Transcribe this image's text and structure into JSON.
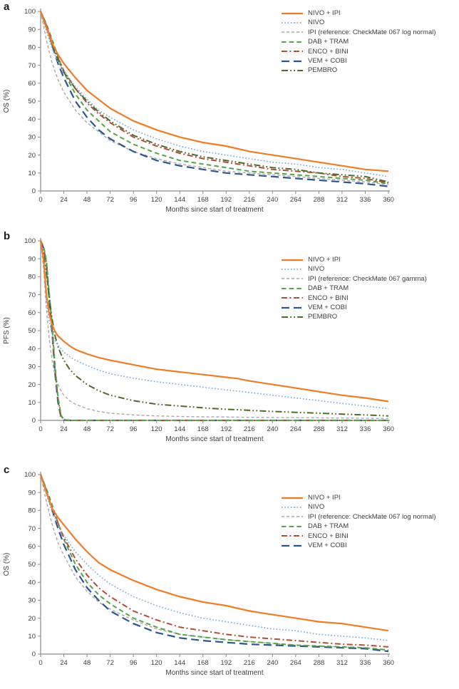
{
  "figure": {
    "panels": [
      {
        "label": "a"
      },
      {
        "label": "b"
      },
      {
        "label": "c"
      }
    ]
  },
  "chart_data": [
    {
      "type": "line",
      "panel": "a",
      "title": "",
      "xlabel": "Months since start of treatment",
      "ylabel": "OS (%)",
      "xlim": [
        0,
        360
      ],
      "ylim": [
        0,
        100
      ],
      "grid": false,
      "legend_position": "top-right-inside",
      "xticks": [
        0,
        24,
        48,
        72,
        96,
        120,
        144,
        168,
        192,
        216,
        240,
        264,
        288,
        312,
        336,
        360
      ],
      "yticks": [
        0,
        10,
        20,
        30,
        40,
        50,
        60,
        70,
        80,
        90,
        100
      ],
      "x": [
        0,
        6,
        12,
        18,
        24,
        36,
        48,
        60,
        72,
        96,
        120,
        144,
        168,
        192,
        216,
        240,
        264,
        288,
        312,
        336,
        360
      ],
      "series": [
        {
          "name": "NIVO + IPI",
          "color": "#f07c26",
          "style": "solid",
          "values": [
            100,
            91,
            82,
            76,
            71,
            63,
            56,
            51,
            46,
            39,
            34,
            30,
            27,
            25,
            22,
            20,
            18,
            16,
            14,
            12,
            11
          ]
        },
        {
          "name": "NIVO",
          "color": "#79abdc",
          "style": "dot",
          "values": [
            100,
            89,
            79,
            72,
            67,
            58,
            51,
            45,
            41,
            34,
            29,
            25,
            22,
            20,
            18,
            16,
            15,
            13,
            12,
            10,
            8
          ]
        },
        {
          "name": "IPI (reference: CheckMate 067 log normal)",
          "color": "#a7a7a7",
          "style": "dash-small",
          "values": [
            100,
            84,
            71,
            62,
            55,
            45,
            38,
            33,
            28,
            22,
            18,
            15,
            13,
            11,
            10,
            9,
            8,
            7,
            6,
            5,
            3.5
          ]
        },
        {
          "name": "DAB + TRAM",
          "color": "#55a546",
          "style": "dash",
          "values": [
            100,
            93,
            84,
            75,
            66,
            54,
            45,
            39,
            33,
            26,
            21,
            17,
            15,
            13,
            11,
            10,
            9,
            8,
            7,
            6,
            4
          ]
        },
        {
          "name": "ENCO + BINI",
          "color": "#ae4f38",
          "style": "dash-dot",
          "values": [
            100,
            92,
            83,
            74,
            67,
            57,
            49,
            43,
            38,
            30,
            25,
            21,
            18,
            16,
            14,
            12,
            11,
            10,
            8,
            7,
            4.5
          ]
        },
        {
          "name": "VEM + COBI",
          "color": "#2d5590",
          "style": "long-dash",
          "values": [
            100,
            92,
            81,
            71,
            63,
            50,
            41,
            34,
            29,
            22,
            17,
            14,
            12,
            10,
            9,
            8,
            7,
            6,
            5,
            4,
            2.5
          ]
        },
        {
          "name": "PEMBRO",
          "color": "#4e6a2c",
          "style": "dash-dot-dot",
          "values": [
            100,
            91,
            81,
            73,
            66,
            57,
            50,
            44,
            39,
            31,
            26,
            22,
            19,
            17,
            15,
            13,
            12,
            10,
            9,
            8,
            5
          ]
        }
      ],
      "draw_order": [
        2,
        5,
        3,
        4,
        6,
        1,
        0
      ]
    },
    {
      "type": "line",
      "panel": "b",
      "title": "",
      "xlabel": "Months since start of treatment",
      "ylabel": "PFS (%)",
      "xlim": [
        0,
        360
      ],
      "ylim": [
        0,
        100
      ],
      "grid": false,
      "legend_position": "top-right-inside",
      "xticks": [
        0,
        24,
        48,
        72,
        96,
        120,
        144,
        168,
        192,
        216,
        240,
        264,
        288,
        312,
        336,
        360
      ],
      "yticks": [
        0,
        10,
        20,
        30,
        40,
        50,
        60,
        70,
        80,
        90,
        100
      ],
      "x": [
        0,
        3,
        6,
        9,
        12,
        15,
        18,
        21,
        24,
        30,
        36,
        48,
        60,
        72,
        96,
        120,
        144,
        168,
        192,
        204,
        216,
        240,
        264,
        288,
        312,
        336,
        360
      ],
      "series": [
        {
          "name": "NIVO + IPI",
          "color": "#f07c26",
          "style": "solid",
          "values": [
            100,
            90,
            70,
            59,
            53,
            49.5,
            47,
            45.5,
            44,
            41.5,
            39.5,
            37,
            35,
            33.5,
            31,
            28.5,
            27,
            25.5,
            24,
            23.3,
            22,
            20,
            18,
            16,
            14,
            12.5,
            10.5
          ]
        },
        {
          "name": "NIVO",
          "color": "#79abdc",
          "style": "dot",
          "values": [
            100,
            88,
            66,
            55,
            48,
            44.5,
            42,
            40,
            38,
            35.5,
            33.5,
            30.5,
            28,
            26,
            23.5,
            21.5,
            20,
            18.5,
            17,
            16.3,
            15.5,
            14,
            12.5,
            11,
            9.5,
            8,
            6.5
          ]
        },
        {
          "name": "IPI (reference: CheckMate 067 gamma)",
          "color": "#a7a7a7",
          "style": "dash-small",
          "values": [
            100,
            85,
            62,
            45,
            33,
            25,
            20,
            16.5,
            14,
            11,
            9,
            6.5,
            5,
            4,
            3,
            2.5,
            2.2,
            2,
            1.9,
            1.8,
            1.7,
            1.6,
            1.5,
            1.4,
            1.3,
            1.2,
            1
          ]
        },
        {
          "name": "DAB + TRAM",
          "color": "#55a546",
          "style": "dash",
          "values": [
            100,
            97,
            89,
            70,
            52,
            30,
            13,
            3,
            0.4,
            0,
            0,
            0,
            0,
            0,
            0,
            0,
            0,
            0,
            0,
            0,
            0,
            0,
            0,
            0,
            0,
            0,
            0
          ]
        },
        {
          "name": "ENCO + BINI",
          "color": "#ae4f38",
          "style": "dash-dot",
          "values": [
            100,
            96,
            88,
            68,
            50,
            28,
            12,
            2.5,
            0.3,
            0,
            0,
            0,
            0,
            0,
            0,
            0,
            0,
            0,
            0,
            0,
            0,
            0,
            0,
            0,
            0,
            0,
            0
          ]
        },
        {
          "name": "VEM + COBI",
          "color": "#2d5590",
          "style": "long-dash",
          "values": [
            100,
            96,
            87,
            66,
            48,
            26,
            10,
            2,
            0.2,
            0,
            0,
            0,
            0,
            0,
            0,
            0,
            0,
            0,
            0,
            0,
            0,
            0,
            0,
            0,
            0,
            0,
            0
          ]
        },
        {
          "name": "PEMBRO",
          "color": "#4e6a2c",
          "style": "dash-dot-dot",
          "values": [
            100,
            93,
            82,
            68,
            56,
            47,
            41,
            37,
            33.5,
            28.5,
            25,
            20,
            16.5,
            14,
            11,
            9,
            8,
            7,
            6.2,
            5.9,
            5.6,
            5,
            4.5,
            4,
            3.5,
            3,
            2.5
          ]
        }
      ],
      "draw_order": [
        2,
        5,
        4,
        3,
        6,
        1,
        0
      ]
    },
    {
      "type": "line",
      "panel": "c",
      "title": "",
      "xlabel": "Months since start of treatment",
      "ylabel": "OS (%)",
      "xlim": [
        0,
        360
      ],
      "ylim": [
        0,
        100
      ],
      "grid": false,
      "legend_position": "top-right-inside",
      "xticks": [
        0,
        24,
        48,
        72,
        96,
        120,
        144,
        168,
        192,
        216,
        240,
        264,
        288,
        312,
        336,
        360
      ],
      "yticks": [
        0,
        10,
        20,
        30,
        40,
        50,
        60,
        70,
        80,
        90,
        100
      ],
      "x": [
        0,
        6,
        12,
        18,
        24,
        36,
        48,
        60,
        72,
        96,
        120,
        144,
        168,
        192,
        216,
        240,
        264,
        288,
        312,
        336,
        360
      ],
      "series": [
        {
          "name": "NIVO + IPI",
          "color": "#f07c26",
          "style": "solid",
          "values": [
            100,
            90,
            81,
            76,
            72,
            64,
            57,
            51,
            47,
            41,
            36,
            32,
            29,
            27,
            24,
            22,
            20,
            18,
            17,
            15,
            13
          ]
        },
        {
          "name": "NIVO",
          "color": "#79abdc",
          "style": "dot",
          "values": [
            100,
            89,
            79,
            72,
            66,
            57,
            50,
            44,
            39,
            32,
            27,
            23,
            20,
            18,
            16,
            14,
            13,
            11,
            10,
            9,
            7.5
          ]
        },
        {
          "name": "IPI (reference: CheckMate 067 log normal)",
          "color": "#a7a7a7",
          "style": "dash-small",
          "values": [
            100,
            85,
            72,
            62,
            55,
            43,
            35,
            29,
            25,
            19,
            14,
            11,
            9.5,
            8,
            7,
            6,
            5,
            4.5,
            4,
            3.5,
            2
          ]
        },
        {
          "name": "DAB + TRAM",
          "color": "#55a546",
          "style": "dash",
          "values": [
            100,
            92,
            83,
            73,
            64,
            50,
            40,
            33,
            28,
            20,
            15,
            11,
            9.5,
            8,
            7,
            6,
            5,
            4.5,
            4,
            3.5,
            2.3
          ]
        },
        {
          "name": "ENCO + BINI",
          "color": "#ae4f38",
          "style": "dash-dot",
          "values": [
            100,
            91,
            81,
            73,
            65,
            53,
            44,
            37,
            32,
            24,
            19,
            15,
            13,
            11,
            9.5,
            8.5,
            7.5,
            6.5,
            5.5,
            5,
            4
          ]
        },
        {
          "name": "VEM + COBI",
          "color": "#2d5590",
          "style": "long-dash",
          "values": [
            100,
            91,
            80,
            70,
            61,
            47,
            37,
            30,
            24,
            17,
            12,
            9,
            7.5,
            6.5,
            5.5,
            5,
            4.5,
            4,
            3.5,
            3,
            1.5
          ]
        }
      ],
      "draw_order": [
        2,
        5,
        3,
        4,
        1,
        0
      ]
    }
  ]
}
